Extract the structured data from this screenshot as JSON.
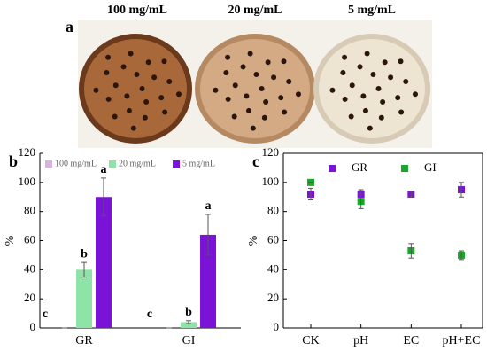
{
  "photo": {
    "label": "a",
    "captions": [
      "100 mg/mL",
      "20 mg/mL",
      "5 mg/mL"
    ]
  },
  "chart_data": [
    {
      "type": "bar",
      "panel": "b",
      "ylabel": "%",
      "categories": [
        "GR",
        "GI"
      ],
      "series": [
        {
          "name": "100 mg/mL",
          "color": "#d8b2e0",
          "values": [
            0,
            0
          ],
          "errors": [
            0,
            0
          ],
          "letters": [
            "c",
            "c"
          ]
        },
        {
          "name": "20 mg/mL",
          "color": "#8ee3a6",
          "values": [
            40,
            4
          ],
          "errors": [
            5,
            1
          ],
          "letters": [
            "b",
            "b"
          ]
        },
        {
          "name": "5 mg/mL",
          "color": "#7a12d8",
          "values": [
            90,
            64
          ],
          "errors": [
            13,
            14
          ],
          "letters": [
            "a",
            "a"
          ]
        }
      ],
      "ylim": [
        0,
        120
      ],
      "yticks": [
        0,
        20,
        40,
        60,
        80,
        100,
        120
      ],
      "legend": "top"
    },
    {
      "type": "scatter",
      "panel": "c",
      "ylabel": "%",
      "categories": [
        "CK",
        "pH",
        "EC",
        "pH+EC"
      ],
      "series": [
        {
          "name": "GR",
          "color": "#7a12d8",
          "values": [
            92,
            92,
            92,
            95
          ],
          "errors": [
            4,
            3,
            2,
            5
          ]
        },
        {
          "name": "GI",
          "color": "#19a82a",
          "values": [
            100,
            87,
            53,
            50
          ],
          "errors": [
            0,
            5,
            5,
            3
          ]
        }
      ],
      "ylim": [
        0,
        120
      ],
      "yticks": [
        0,
        20,
        40,
        60,
        80,
        100,
        120
      ],
      "legend": "top"
    }
  ]
}
